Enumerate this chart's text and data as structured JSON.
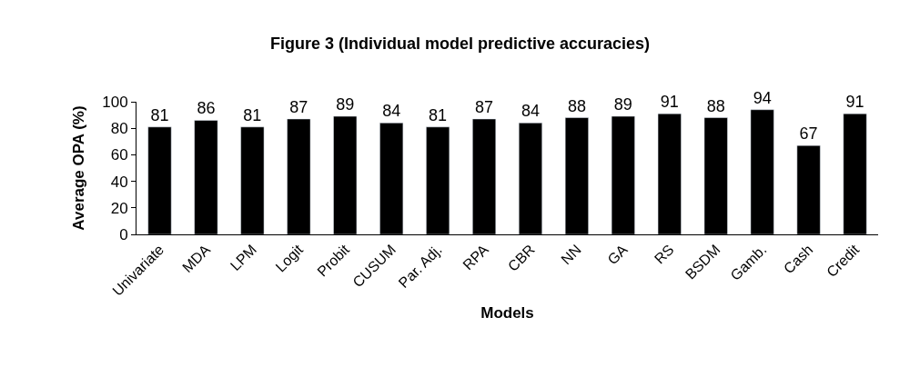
{
  "chart_data": {
    "type": "bar",
    "title": "Figure 3 (Individual model predictive accuracies)",
    "xlabel": "Models",
    "ylabel": "Average OPA (%)",
    "categories": [
      "Univariate",
      "MDA",
      "LPM",
      "Logit",
      "Probit",
      "CUSUM",
      "Par. Adj.",
      "RPA",
      "CBR",
      "NN",
      "GA",
      "RS",
      "BSDM",
      "Gamb.",
      "Cash",
      "Credit"
    ],
    "values": [
      81,
      86,
      81,
      87,
      89,
      84,
      81,
      87,
      84,
      88,
      89,
      91,
      88,
      94,
      67,
      91
    ],
    "color": "#000000",
    "ylim": [
      0,
      100
    ],
    "yticks": [
      0,
      20,
      40,
      60,
      80,
      100
    ],
    "grid": false,
    "legend": false,
    "data_labels": true
  }
}
